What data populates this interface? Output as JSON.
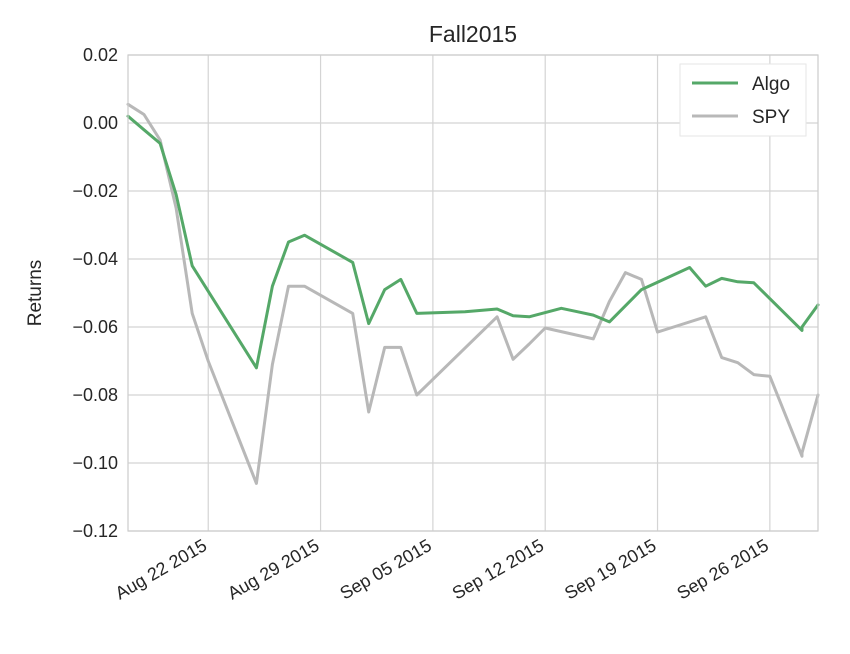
{
  "chart_data": {
    "type": "line",
    "title": "Fall2015",
    "xlabel": "",
    "ylabel": "Returns",
    "ylim": [
      -0.12,
      0.02
    ],
    "xlim": [
      "2015-08-19",
      "2015-10-01"
    ],
    "y_ticks": [
      "0.02",
      "0.00",
      "−0.02",
      "−0.04",
      "−0.06",
      "−0.08",
      "−0.10",
      "−0.12"
    ],
    "y_tick_values": [
      0.02,
      0.0,
      -0.02,
      -0.04,
      -0.06,
      -0.08,
      -0.1,
      -0.12
    ],
    "x_ticks": [
      "Aug 22 2015",
      "Aug 29 2015",
      "Sep 05 2015",
      "Sep 12 2015",
      "Sep 19 2015",
      "Sep 26 2015"
    ],
    "x_tick_dates": [
      "2015-08-24",
      "2015-08-31",
      "2015-09-07",
      "2015-09-14",
      "2015-09-21",
      "2015-09-28"
    ],
    "grid": true,
    "legend_position": "top-right",
    "series": [
      {
        "name": "Algo",
        "color": "#55a868",
        "x": [
          "2015-08-19",
          "2015-08-20",
          "2015-08-21",
          "2015-08-22",
          "2015-08-23",
          "2015-08-27",
          "2015-08-28",
          "2015-08-29",
          "2015-08-30",
          "2015-09-02",
          "2015-09-03",
          "2015-09-04",
          "2015-09-05",
          "2015-09-06",
          "2015-09-09",
          "2015-09-11",
          "2015-09-12",
          "2015-09-13",
          "2015-09-15",
          "2015-09-16",
          "2015-09-17",
          "2015-09-18",
          "2015-09-20",
          "2015-09-23",
          "2015-09-24",
          "2015-09-25",
          "2015-09-26",
          "2015-09-27",
          "2015-09-30",
          "2015-09-30",
          "2015-10-01"
        ],
        "y": [
          0.002,
          -0.002,
          -0.006,
          -0.021,
          -0.042,
          -0.072,
          -0.048,
          -0.035,
          -0.033,
          -0.041,
          -0.059,
          -0.049,
          -0.046,
          -0.056,
          -0.0555,
          -0.0547,
          -0.0567,
          -0.057,
          -0.0545,
          -0.0555,
          -0.0565,
          -0.0585,
          -0.049,
          -0.0425,
          -0.048,
          -0.0457,
          -0.0467,
          -0.047,
          -0.061,
          -0.06,
          -0.0535
        ]
      },
      {
        "name": "SPY",
        "color": "#b8b8b8",
        "x": [
          "2015-08-19",
          "2015-08-20",
          "2015-08-21",
          "2015-08-22",
          "2015-08-23",
          "2015-08-24",
          "2015-08-27",
          "2015-08-28",
          "2015-08-29",
          "2015-08-30",
          "2015-09-02",
          "2015-09-03",
          "2015-09-04",
          "2015-09-05",
          "2015-09-06",
          "2015-09-11",
          "2015-09-12",
          "2015-09-13",
          "2015-09-14",
          "2015-09-17",
          "2015-09-18",
          "2015-09-19",
          "2015-09-20",
          "2015-09-21",
          "2015-09-22",
          "2015-09-24",
          "2015-09-25",
          "2015-09-26",
          "2015-09-27",
          "2015-09-28",
          "2015-09-30",
          "2015-09-30",
          "2015-10-01"
        ],
        "y": [
          0.0055,
          0.0025,
          -0.005,
          -0.025,
          -0.056,
          -0.07,
          -0.106,
          -0.071,
          -0.048,
          -0.048,
          -0.056,
          -0.085,
          -0.066,
          -0.066,
          -0.08,
          -0.057,
          -0.0695,
          -0.065,
          -0.0603,
          -0.0635,
          -0.0525,
          -0.044,
          -0.046,
          -0.0615,
          -0.06,
          -0.057,
          -0.069,
          -0.0705,
          -0.074,
          -0.0745,
          -0.098,
          -0.097,
          -0.08
        ]
      }
    ]
  }
}
